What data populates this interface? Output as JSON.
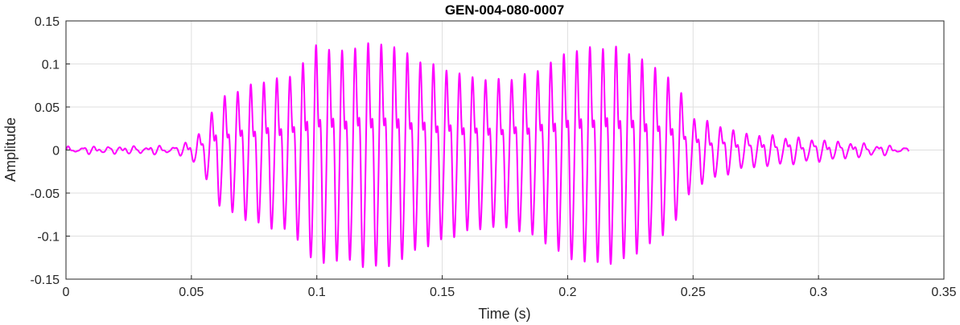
{
  "chart_data": {
    "type": "line",
    "title": "GEN-004-080-0007",
    "xlabel": "Time (s)",
    "ylabel": "Amplitude",
    "xlim": [
      0,
      0.35
    ],
    "ylim": [
      -0.15,
      0.15
    ],
    "xticks": [
      0,
      0.05,
      0.1,
      0.15,
      0.2,
      0.25,
      0.3,
      0.35
    ],
    "xtick_labels": [
      "0",
      "0.05",
      "0.1",
      "0.15",
      "0.2",
      "0.25",
      "0.3",
      "0.35"
    ],
    "yticks": [
      0.15,
      0.1,
      0.05,
      0,
      -0.05,
      -0.1,
      -0.15
    ],
    "ytick_labels": [
      "0.15",
      "0.1",
      "0.05",
      "0",
      "-0.05",
      "-0.1",
      "-0.15"
    ],
    "grid": true,
    "line_color": "#ff00ff",
    "series": [
      {
        "envelope_x": [
          0,
          0.045,
          0.05,
          0.055,
          0.06,
          0.07,
          0.08,
          0.09,
          0.1,
          0.11,
          0.12,
          0.13,
          0.14,
          0.15,
          0.16,
          0.17,
          0.18,
          0.19,
          0.2,
          0.21,
          0.22,
          0.23,
          0.24,
          0.245,
          0.25,
          0.26,
          0.27,
          0.3,
          0.336
        ],
        "envelope_y": [
          0.003,
          0.004,
          0.012,
          0.025,
          0.06,
          0.075,
          0.085,
          0.09,
          0.128,
          0.12,
          0.13,
          0.128,
          0.11,
          0.1,
          0.09,
          0.085,
          0.088,
          0.1,
          0.12,
          0.125,
          0.125,
          0.11,
          0.09,
          0.07,
          0.04,
          0.03,
          0.02,
          0.012,
          0.002
        ],
        "period_s": 0.0052,
        "x_end": 0.336
      }
    ]
  }
}
